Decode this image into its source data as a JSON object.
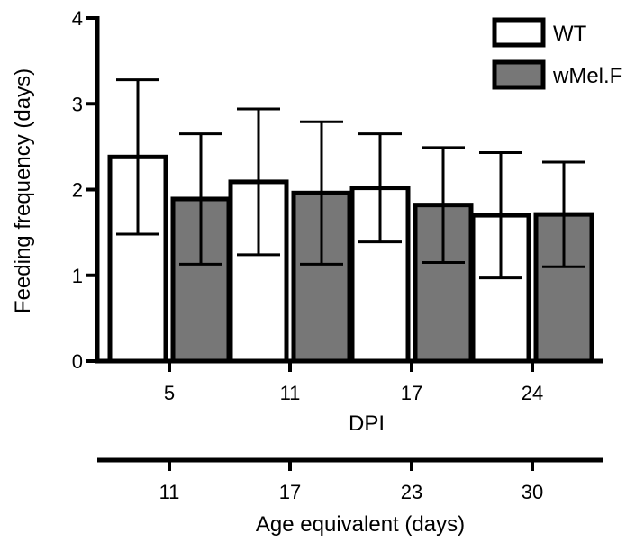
{
  "chart_data": {
    "type": "bar",
    "ylabel": "Feeding frequency (days)",
    "xlabel": "DPI",
    "x2label": "Age equivalent (days)",
    "categories": [
      "5",
      "11",
      "17",
      "24"
    ],
    "secondary_categories": [
      "11",
      "17",
      "23",
      "30"
    ],
    "ylim": [
      0,
      4
    ],
    "yticks": [
      "0",
      "1",
      "2",
      "3",
      "4"
    ],
    "legend_position": "top-right",
    "series": [
      {
        "name": "WT",
        "color": "#ffffff",
        "values": [
          2.38,
          2.09,
          2.02,
          1.7
        ],
        "error": [
          0.9,
          0.85,
          0.63,
          0.73
        ]
      },
      {
        "name": "wMel.F",
        "color": "#777777",
        "values": [
          1.89,
          1.96,
          1.82,
          1.71
        ],
        "error": [
          0.76,
          0.83,
          0.67,
          0.61
        ]
      }
    ]
  }
}
